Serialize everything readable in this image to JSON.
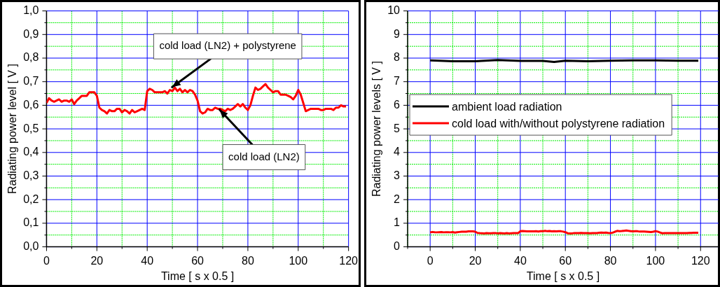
{
  "chart_data": [
    {
      "type": "line",
      "xlabel": "Time [ s x 0.5 ]",
      "ylabel": "Radiating power level [ V ]",
      "x": [
        0,
        1,
        2,
        3,
        4,
        5,
        6,
        7,
        8,
        9,
        10,
        11,
        12,
        13,
        14,
        15,
        16,
        17,
        18,
        19,
        20,
        21,
        22,
        23,
        24,
        25,
        26,
        27,
        28,
        29,
        30,
        31,
        32,
        33,
        34,
        35,
        36,
        37,
        38,
        39,
        40,
        41,
        42,
        43,
        44,
        45,
        46,
        47,
        48,
        49,
        50,
        51,
        52,
        53,
        54,
        55,
        56,
        57,
        58,
        59,
        60,
        61,
        62,
        63,
        64,
        65,
        66,
        67,
        68,
        69,
        70,
        71,
        72,
        73,
        74,
        75,
        76,
        77,
        78,
        79,
        80,
        81,
        82,
        83,
        84,
        85,
        86,
        87,
        88,
        89,
        90,
        91,
        92,
        93,
        94,
        95,
        96,
        97,
        98,
        99,
        100,
        101,
        102,
        103,
        104,
        105,
        106,
        107,
        108,
        109,
        110,
        111,
        112,
        113,
        114,
        115,
        116,
        117,
        118,
        119
      ],
      "series": [
        {
          "color": "#ff0000",
          "values": [
            0.61,
            0.63,
            0.62,
            0.615,
            0.62,
            0.625,
            0.615,
            0.62,
            0.62,
            0.615,
            0.625,
            0.605,
            0.62,
            0.63,
            0.64,
            0.64,
            0.64,
            0.655,
            0.655,
            0.655,
            0.64,
            0.59,
            0.58,
            0.575,
            0.565,
            0.58,
            0.575,
            0.575,
            0.585,
            0.585,
            0.57,
            0.58,
            0.575,
            0.565,
            0.58,
            0.57,
            0.575,
            0.58,
            0.585,
            0.58,
            0.66,
            0.67,
            0.665,
            0.655,
            0.655,
            0.655,
            0.655,
            0.66,
            0.65,
            0.665,
            0.66,
            0.675,
            0.66,
            0.67,
            0.655,
            0.665,
            0.655,
            0.665,
            0.66,
            0.645,
            0.62,
            0.575,
            0.565,
            0.57,
            0.585,
            0.58,
            0.58,
            0.59,
            0.585,
            0.585,
            0.58,
            0.575,
            0.585,
            0.58,
            0.585,
            0.595,
            0.605,
            0.595,
            0.605,
            0.59,
            0.58,
            0.6,
            0.64,
            0.675,
            0.665,
            0.67,
            0.68,
            0.69,
            0.675,
            0.665,
            0.655,
            0.66,
            0.66,
            0.645,
            0.645,
            0.645,
            0.64,
            0.635,
            0.625,
            0.64,
            0.665,
            0.645,
            0.61,
            0.575,
            0.58,
            0.585,
            0.585,
            0.585,
            0.585,
            0.58,
            0.58,
            0.585,
            0.585,
            0.585,
            0.58,
            0.59,
            0.59,
            0.6,
            0.595,
            0.595
          ]
        }
      ],
      "xlim": [
        0,
        120
      ],
      "xticks": [
        0,
        {
          "value": 10,
          "label": null
        },
        20,
        {
          "value": 30,
          "label": null
        },
        40,
        {
          "value": 50,
          "label": null
        },
        60,
        {
          "value": 70,
          "label": null
        },
        80,
        {
          "value": 90,
          "label": null
        },
        100,
        {
          "value": 110,
          "label": null
        },
        120
      ],
      "ylim": [
        0,
        1
      ],
      "yticks": [
        {
          "value": 0,
          "label": "0,0"
        },
        {
          "value": 0.05,
          "label": null
        },
        {
          "value": 0.1,
          "label": "0,1"
        },
        {
          "value": 0.15,
          "label": null
        },
        {
          "value": 0.2,
          "label": "0,2"
        },
        {
          "value": 0.25,
          "label": null
        },
        {
          "value": 0.3,
          "label": "0,3"
        },
        {
          "value": 0.35,
          "label": null
        },
        {
          "value": 0.4,
          "label": "0,4"
        },
        {
          "value": 0.45,
          "label": null
        },
        {
          "value": 0.5,
          "label": "0,5"
        },
        {
          "value": 0.55,
          "label": null
        },
        {
          "value": 0.6,
          "label": "0,6"
        },
        {
          "value": 0.65,
          "label": null
        },
        {
          "value": 0.7,
          "label": "0,7"
        },
        {
          "value": 0.75,
          "label": null
        },
        {
          "value": 0.8,
          "label": "0,8"
        },
        {
          "value": 0.85,
          "label": null
        },
        {
          "value": 0.9,
          "label": "0,9"
        },
        {
          "value": 0.95,
          "label": null
        },
        {
          "value": 1,
          "label": "1,0"
        }
      ],
      "grid": true,
      "annotations": [
        {
          "text": "cold load (LN2) + polystyrene",
          "x": 49,
          "y": 0.67
        },
        {
          "text": "cold load (LN2)",
          "x": 68,
          "y": 0.59
        }
      ]
    },
    {
      "type": "line",
      "xlabel": "Time [ s x 0.5 ]",
      "ylabel": "Radiating power levels [ V ]",
      "x": [
        0,
        1,
        2,
        3,
        4,
        5,
        6,
        7,
        8,
        9,
        10,
        11,
        12,
        13,
        14,
        15,
        16,
        17,
        18,
        19,
        20,
        21,
        22,
        23,
        24,
        25,
        26,
        27,
        28,
        29,
        30,
        31,
        32,
        33,
        34,
        35,
        36,
        37,
        38,
        39,
        40,
        41,
        42,
        43,
        44,
        45,
        46,
        47,
        48,
        49,
        50,
        51,
        52,
        53,
        54,
        55,
        56,
        57,
        58,
        59,
        60,
        61,
        62,
        63,
        64,
        65,
        66,
        67,
        68,
        69,
        70,
        71,
        72,
        73,
        74,
        75,
        76,
        77,
        78,
        79,
        80,
        81,
        82,
        83,
        84,
        85,
        86,
        87,
        88,
        89,
        90,
        91,
        92,
        93,
        94,
        95,
        96,
        97,
        98,
        99,
        100,
        101,
        102,
        103,
        104,
        105,
        106,
        107,
        108,
        109,
        110,
        111,
        112,
        113,
        114,
        115,
        116,
        117,
        118,
        119
      ],
      "series": [
        {
          "name": "ambient load radiation",
          "color": "#000000",
          "x": [
            0,
            10,
            20,
            30,
            40,
            50,
            55,
            60,
            70,
            80,
            90,
            100,
            110,
            119
          ],
          "values": [
            7.9,
            7.87,
            7.87,
            7.92,
            7.88,
            7.88,
            7.84,
            7.89,
            7.87,
            7.89,
            7.9,
            7.9,
            7.89,
            7.89
          ]
        },
        {
          "name": "cold load with/without polystyrene radiation",
          "color": "#ff0000",
          "values": [
            0.61,
            0.63,
            0.62,
            0.615,
            0.62,
            0.625,
            0.615,
            0.62,
            0.62,
            0.615,
            0.625,
            0.605,
            0.62,
            0.63,
            0.64,
            0.64,
            0.64,
            0.655,
            0.655,
            0.655,
            0.64,
            0.59,
            0.58,
            0.575,
            0.565,
            0.58,
            0.575,
            0.575,
            0.585,
            0.585,
            0.57,
            0.58,
            0.575,
            0.565,
            0.58,
            0.57,
            0.575,
            0.58,
            0.585,
            0.58,
            0.66,
            0.67,
            0.665,
            0.655,
            0.655,
            0.655,
            0.655,
            0.66,
            0.65,
            0.665,
            0.66,
            0.675,
            0.66,
            0.67,
            0.655,
            0.665,
            0.655,
            0.665,
            0.66,
            0.645,
            0.62,
            0.575,
            0.565,
            0.57,
            0.585,
            0.58,
            0.58,
            0.59,
            0.585,
            0.585,
            0.58,
            0.575,
            0.585,
            0.58,
            0.585,
            0.595,
            0.605,
            0.595,
            0.605,
            0.59,
            0.58,
            0.6,
            0.64,
            0.675,
            0.665,
            0.67,
            0.68,
            0.69,
            0.675,
            0.665,
            0.655,
            0.66,
            0.66,
            0.645,
            0.645,
            0.645,
            0.64,
            0.635,
            0.625,
            0.64,
            0.665,
            0.645,
            0.61,
            0.575,
            0.58,
            0.585,
            0.585,
            0.585,
            0.585,
            0.58,
            0.58,
            0.585,
            0.585,
            0.585,
            0.58,
            0.59,
            0.59,
            0.6,
            0.595,
            0.595
          ]
        }
      ],
      "xlim": [
        -10,
        128
      ],
      "xticks": [
        {
          "value": -10,
          "label": null
        },
        0,
        {
          "value": 10,
          "label": null
        },
        20,
        {
          "value": 30,
          "label": null
        },
        40,
        {
          "value": 50,
          "label": null
        },
        60,
        {
          "value": 70,
          "label": null
        },
        80,
        {
          "value": 90,
          "label": null
        },
        100,
        {
          "value": 110,
          "label": null
        },
        120
      ],
      "ylim": [
        0,
        10
      ],
      "yticks": [
        0,
        {
          "value": 0.5,
          "label": null
        },
        1,
        {
          "value": 1.5,
          "label": null
        },
        2,
        {
          "value": 2.5,
          "label": null
        },
        3,
        {
          "value": 3.5,
          "label": null
        },
        4,
        {
          "value": 4.5,
          "label": null
        },
        5,
        {
          "value": 5.5,
          "label": null
        },
        6,
        {
          "value": 6.5,
          "label": null
        },
        7,
        {
          "value": 7.5,
          "label": null
        },
        8,
        {
          "value": 8.5,
          "label": null
        },
        9,
        {
          "value": 9.5,
          "label": null
        },
        10
      ],
      "grid": true,
      "legend": "left"
    }
  ]
}
